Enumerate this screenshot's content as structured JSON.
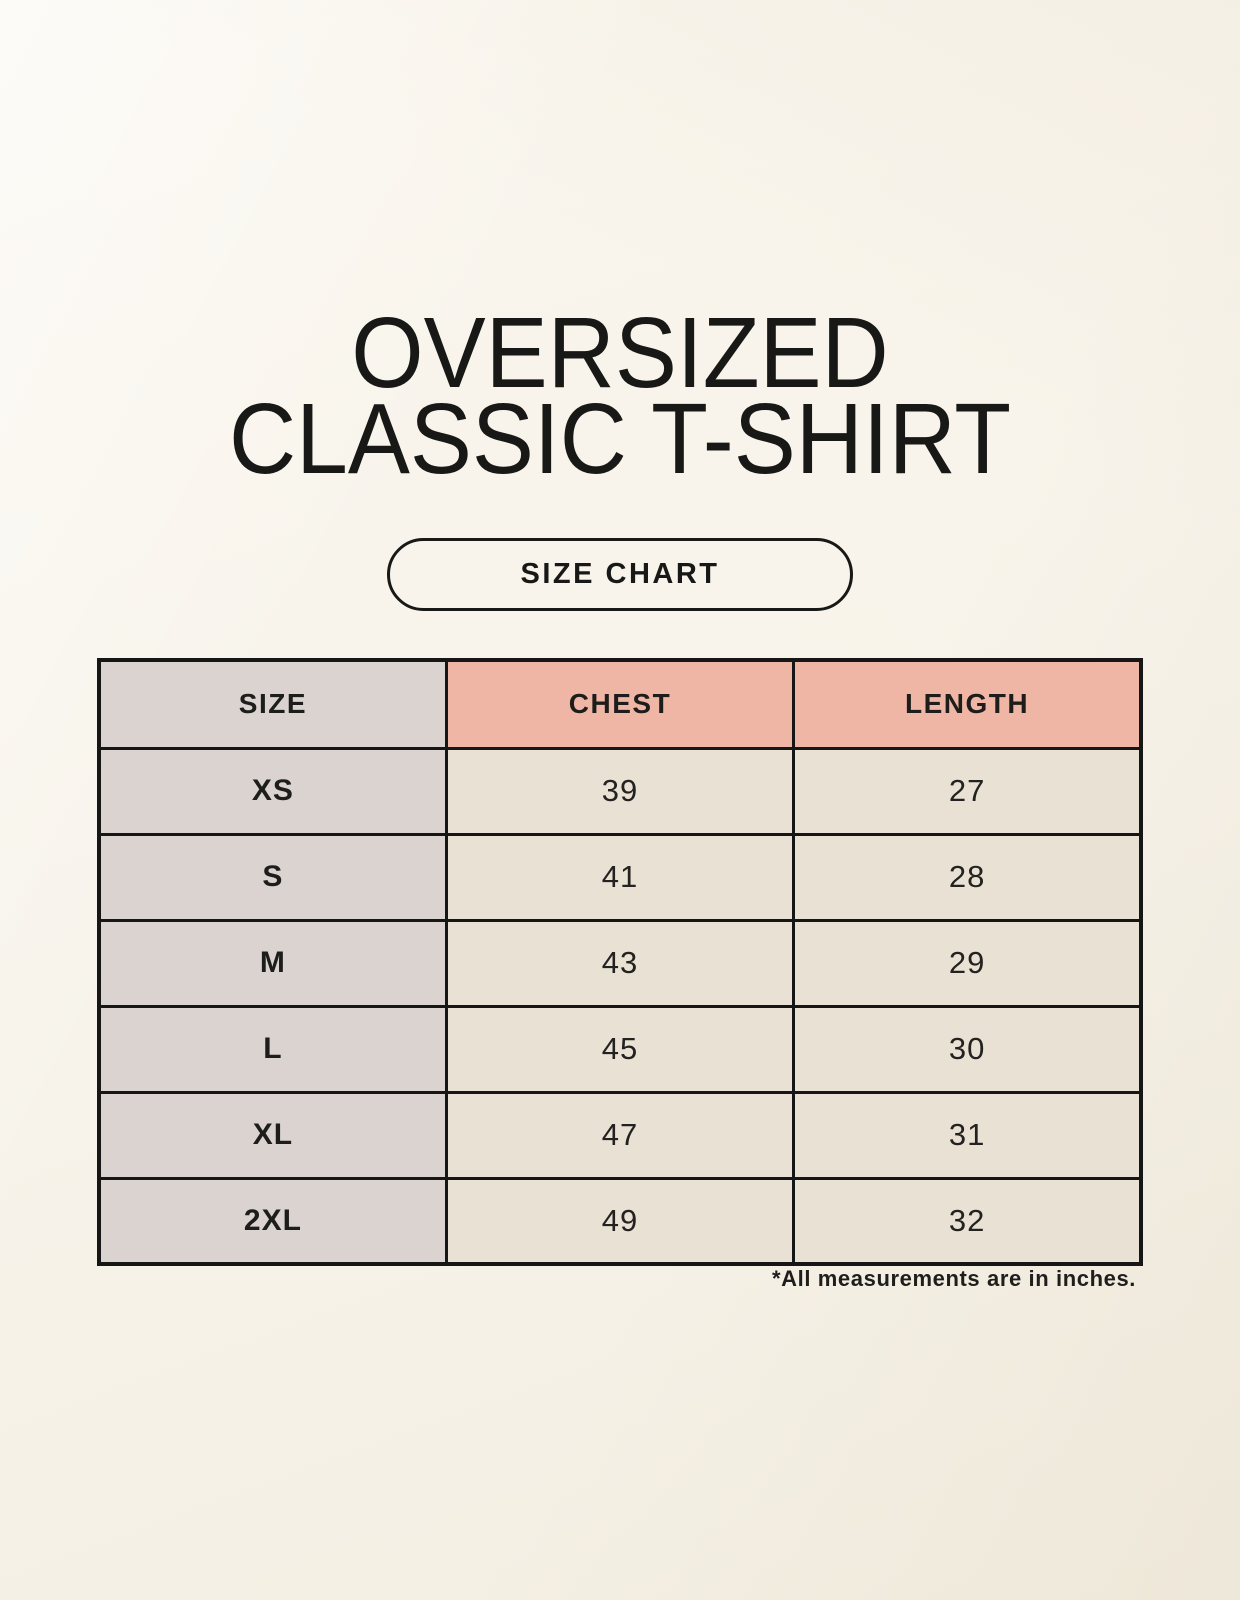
{
  "header": {
    "title_line1": "OVERSIZED",
    "title_line2": "CLASSIC T-SHIRT",
    "badge_label": "SIZE CHART"
  },
  "chart_data": {
    "type": "table",
    "columns": [
      "SIZE",
      "CHEST",
      "LENGTH"
    ],
    "rows": [
      {
        "size": "XS",
        "chest": "39",
        "length": "27"
      },
      {
        "size": "S",
        "chest": "41",
        "length": "28"
      },
      {
        "size": "M",
        "chest": "43",
        "length": "29"
      },
      {
        "size": "L",
        "chest": "45",
        "length": "30"
      },
      {
        "size": "XL",
        "chest": "47",
        "length": "31"
      },
      {
        "size": "2XL",
        "chest": "49",
        "length": "32"
      }
    ],
    "units_note": "*All measurements are in inches."
  },
  "colors": {
    "background": "#f7f3ea",
    "size_column_bg": "#dad3cf",
    "header_accent_bg": "#f0b6a5",
    "cell_bg": "#e9e2d4",
    "table_border": "#161616",
    "text": "#1d1d1b"
  }
}
